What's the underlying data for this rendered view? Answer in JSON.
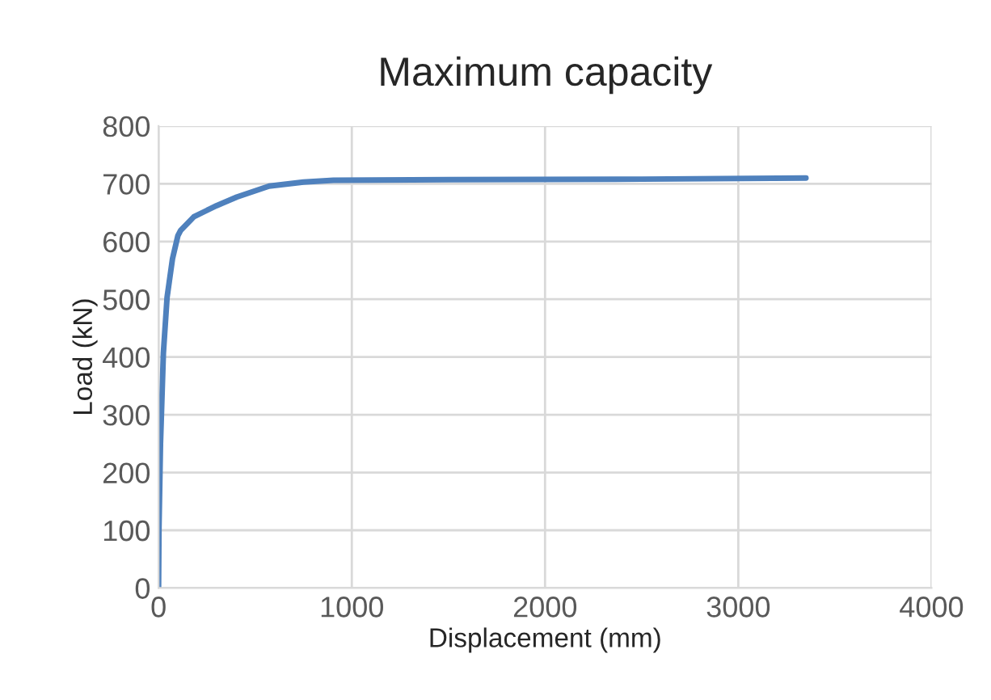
{
  "chart_data": {
    "type": "line",
    "title": "Maximum capacity",
    "xlabel": "Displacement (mm)",
    "ylabel": "Load (kN)",
    "x": [
      0,
      2,
      10,
      25,
      44,
      72,
      100,
      114,
      183,
      300,
      405,
      572,
      750,
      905,
      1500,
      2500,
      3350
    ],
    "series": [
      {
        "color": "#4f81bd",
        "values": [
          0,
          100,
          250,
          407,
          503,
          570,
          610,
          619,
          643,
          662,
          677,
          696,
          703,
          706,
          707,
          708,
          710
        ]
      }
    ],
    "xlim": [
      0,
      4000
    ],
    "xticks": [
      0,
      1000,
      2000,
      3000,
      4000
    ],
    "ylim": [
      0,
      800
    ],
    "yticks": [
      0,
      100,
      200,
      300,
      400,
      500,
      600,
      700,
      800
    ],
    "grid": true,
    "marker": "none",
    "line_style": "solid"
  }
}
